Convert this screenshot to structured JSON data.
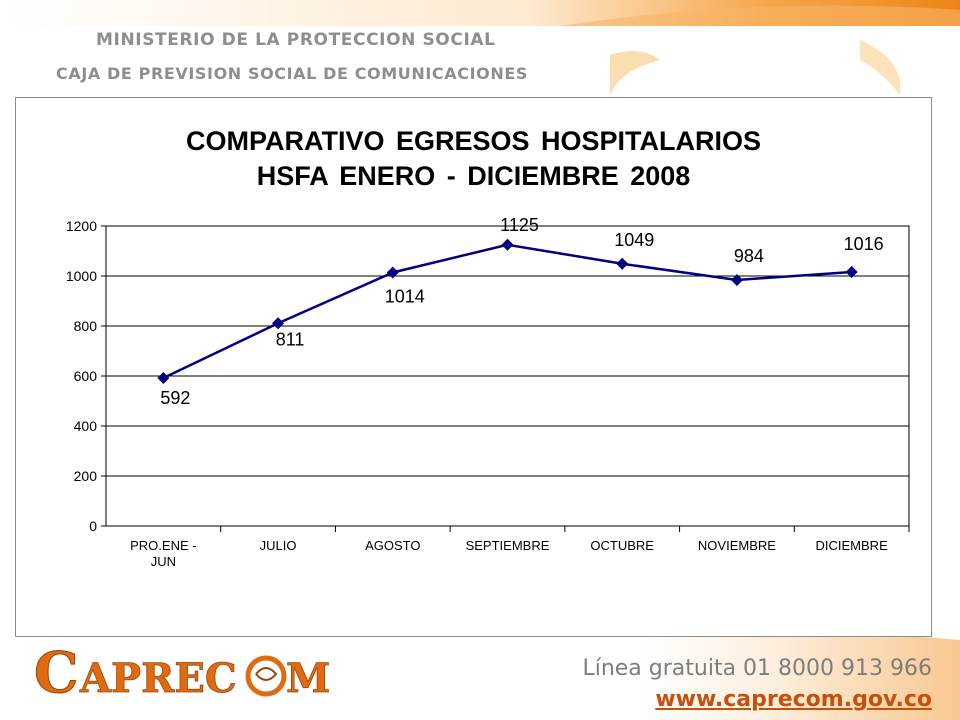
{
  "header": {
    "ministry": "MINISTERIO DE LA PROTECCION SOCIAL",
    "entity": "CAJA DE PREVISION SOCIAL DE COMUNICACIONES"
  },
  "footer": {
    "logo_text": "CAPRECOM",
    "hotline": "Línea gratuita 01 8000 913 966",
    "website": "www.caprecom.gov.co"
  },
  "colors": {
    "accent_orange": "#f08a1c",
    "series_line": "#000080",
    "logo_text": "#e06a10"
  },
  "chart_data": {
    "type": "line",
    "title_lines": [
      "COMPARATIVO EGRESOS HOSPITALARIOS",
      "HSFA  ENERO - DICIEMBRE 2008"
    ],
    "categories": [
      "PRO.ENE - JUN",
      "JULIO",
      "AGOSTO",
      "SEPTIEMBRE",
      "OCTUBRE",
      "NOVIEMBRE",
      "DICIEMBRE"
    ],
    "series": [
      {
        "values": [
          592,
          811,
          1014,
          1125,
          1049,
          984,
          1016
        ]
      }
    ],
    "yticks": [
      0,
      200,
      400,
      600,
      800,
      1000,
      1200
    ],
    "ylim": [
      0,
      1200
    ],
    "grid": true,
    "marker": "diamond",
    "data_labels": true,
    "legend": "none"
  }
}
